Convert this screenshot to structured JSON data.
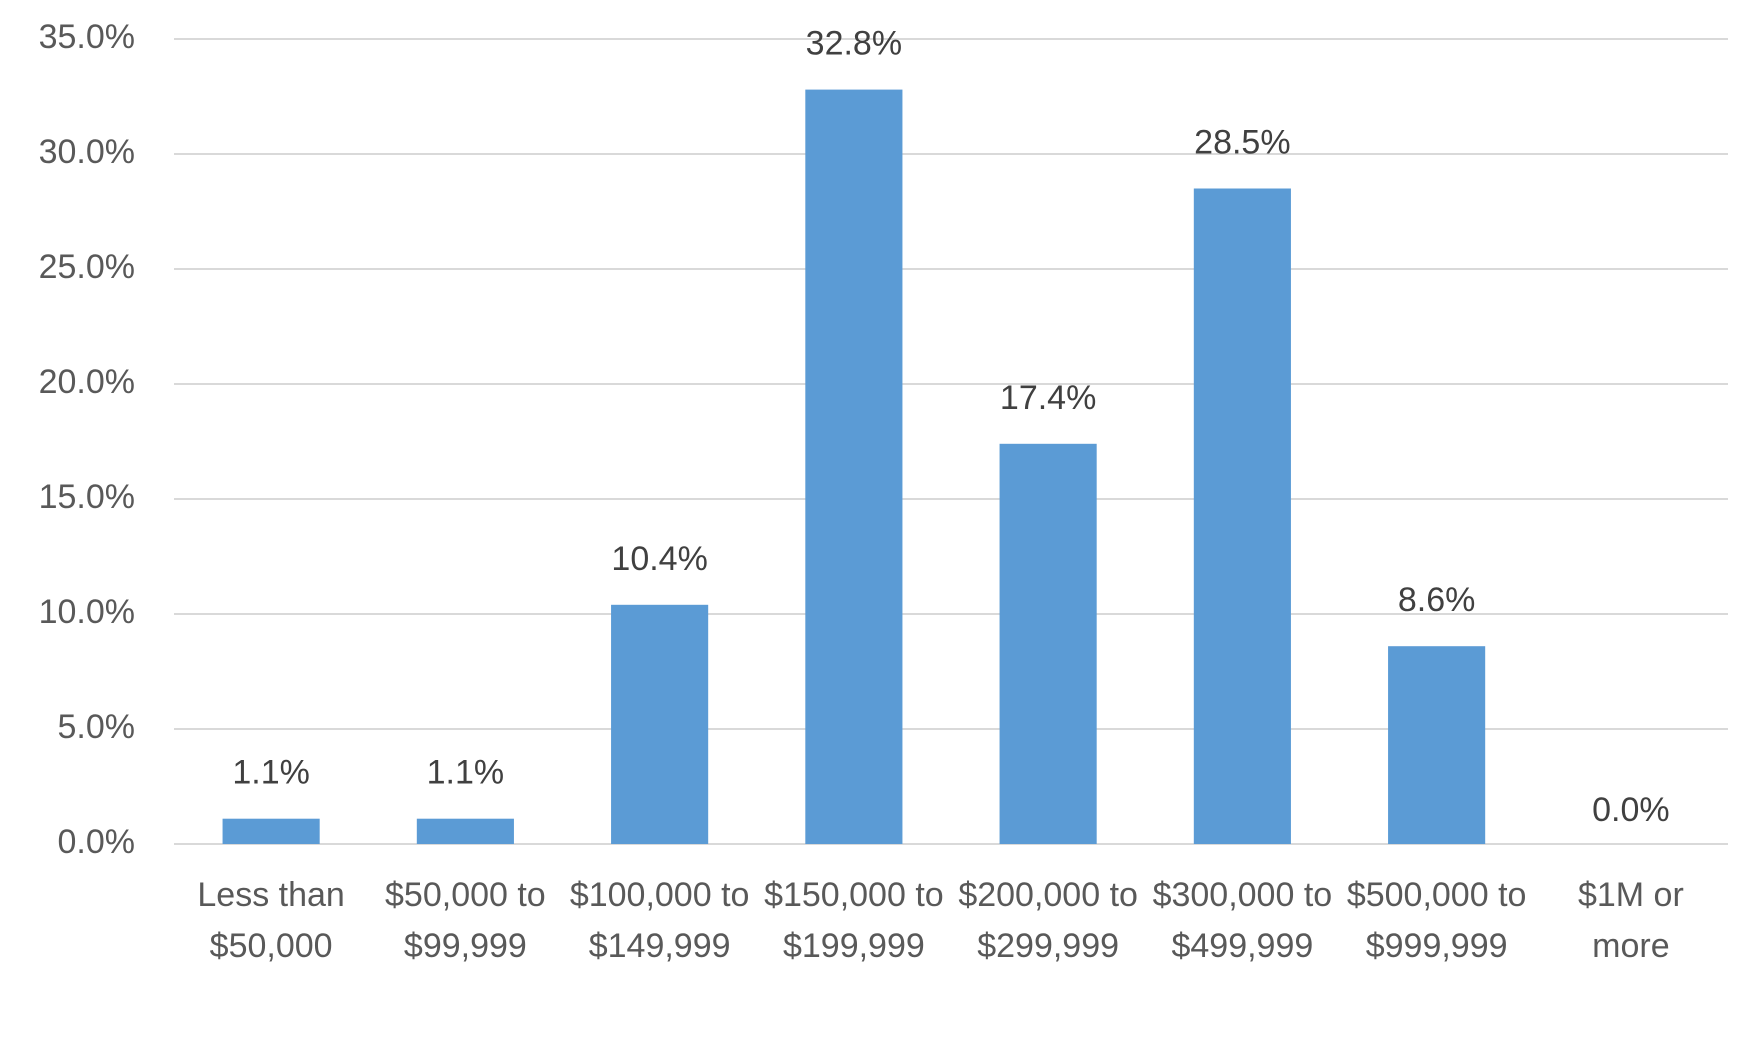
{
  "chart_data": {
    "type": "bar",
    "categories": [
      "Less than $50,000",
      "$50,000 to $99,999",
      "$100,000 to $149,999",
      "$150,000 to $199,999",
      "$200,000 to $299,999",
      "$300,000 to $499,999",
      "$500,000 to $999,999",
      "$1M or more"
    ],
    "values": [
      1.1,
      1.1,
      10.4,
      32.8,
      17.4,
      28.5,
      8.6,
      0.0
    ],
    "value_labels": [
      "1.1%",
      "1.1%",
      "10.4%",
      "32.8%",
      "17.4%",
      "28.5%",
      "8.6%",
      "0.0%"
    ],
    "color": "#5b9bd5",
    "ylim": [
      0,
      35
    ],
    "yticks": [
      {
        "value": 0,
        "label": "0.0%"
      },
      {
        "value": 5,
        "label": "5.0%"
      },
      {
        "value": 10,
        "label": "10.0%"
      },
      {
        "value": 15,
        "label": "15.0%"
      },
      {
        "value": 20,
        "label": "20.0%"
      },
      {
        "value": 25,
        "label": "25.0%"
      },
      {
        "value": 30,
        "label": "30.0%"
      },
      {
        "value": 35,
        "label": "35.0%"
      }
    ],
    "grid": true
  }
}
